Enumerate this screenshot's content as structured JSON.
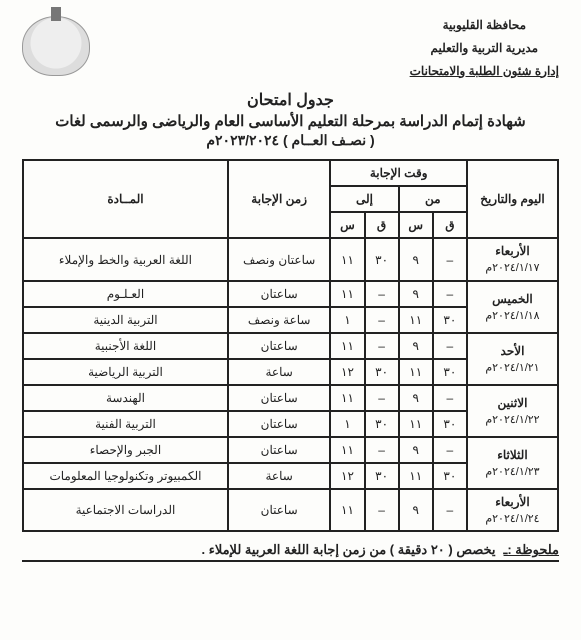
{
  "header": {
    "governorate": "محافظة القليوبية",
    "directorate": "مديرية التربية والتعليم",
    "department": "إدارة شئون الطلبة والامتحانات"
  },
  "title": {
    "line1": "جدول امتحان",
    "line2": "شهادة إتمام الدراسة بمرحلة التعليم الأساسى العام والرياضى والرسمى لغات",
    "line3": "( نصـف العــام ) ٢٠٢٣/٢٠٢٤م"
  },
  "table": {
    "headers": {
      "dayDate": "اليوم والتاريخ",
      "answerTime": "وقت الإجابة",
      "from": "من",
      "to": "إلى",
      "q": "ق",
      "s": "س",
      "duration": "زمن الإجابة",
      "subject": "المــادة"
    },
    "rows": [
      {
        "day": "الأربعاء",
        "date": "٢٠٢٤/١/١٧م",
        "slots": [
          {
            "from_q": "–",
            "from_s": "٩",
            "to_q": "٣٠",
            "to_s": "١١",
            "duration": "ساعتان ونصف",
            "subject": "اللغة العربية والخط والإملاء"
          }
        ]
      },
      {
        "day": "الخميس",
        "date": "٢٠٢٤/١/١٨م",
        "slots": [
          {
            "from_q": "–",
            "from_s": "٩",
            "to_q": "–",
            "to_s": "١١",
            "duration": "ساعتان",
            "subject": "العـلـوم"
          },
          {
            "from_q": "٣٠",
            "from_s": "١١",
            "to_q": "–",
            "to_s": "١",
            "duration": "ساعة ونصف",
            "subject": "التربية الدينية"
          }
        ]
      },
      {
        "day": "الأحد",
        "date": "٢٠٢٤/١/٢١م",
        "slots": [
          {
            "from_q": "–",
            "from_s": "٩",
            "to_q": "–",
            "to_s": "١١",
            "duration": "ساعتان",
            "subject": "اللغة الأجنبية"
          },
          {
            "from_q": "٣٠",
            "from_s": "١١",
            "to_q": "٣٠",
            "to_s": "١٢",
            "duration": "ساعة",
            "subject": "التربية الرياضية"
          }
        ]
      },
      {
        "day": "الاثنين",
        "date": "٢٠٢٤/١/٢٢م",
        "slots": [
          {
            "from_q": "–",
            "from_s": "٩",
            "to_q": "–",
            "to_s": "١١",
            "duration": "ساعتان",
            "subject": "الهندسة"
          },
          {
            "from_q": "٣٠",
            "from_s": "١١",
            "to_q": "٣٠",
            "to_s": "١",
            "duration": "ساعتان",
            "subject": "التربية الفنية"
          }
        ]
      },
      {
        "day": "الثلاثاء",
        "date": "٢٠٢٤/١/٢٣م",
        "slots": [
          {
            "from_q": "–",
            "from_s": "٩",
            "to_q": "–",
            "to_s": "١١",
            "duration": "ساعتان",
            "subject": "الجبر والإحصاء"
          },
          {
            "from_q": "٣٠",
            "from_s": "١١",
            "to_q": "٣٠",
            "to_s": "١٢",
            "duration": "ساعة",
            "subject": "الكمبيوتر وتكنولوجيا المعلومات"
          }
        ]
      },
      {
        "day": "الأربعاء",
        "date": "٢٠٢٤/١/٢٤م",
        "slots": [
          {
            "from_q": "–",
            "from_s": "٩",
            "to_q": "–",
            "to_s": "١١",
            "duration": "ساعتان",
            "subject": "الدراسات الاجتماعية"
          }
        ]
      }
    ]
  },
  "note": {
    "label": "ملحوظة :ـ",
    "text": "يخصص ( ٢٠ دقيقة ) من زمن إجابة اللغة العربية للإملاء ."
  }
}
